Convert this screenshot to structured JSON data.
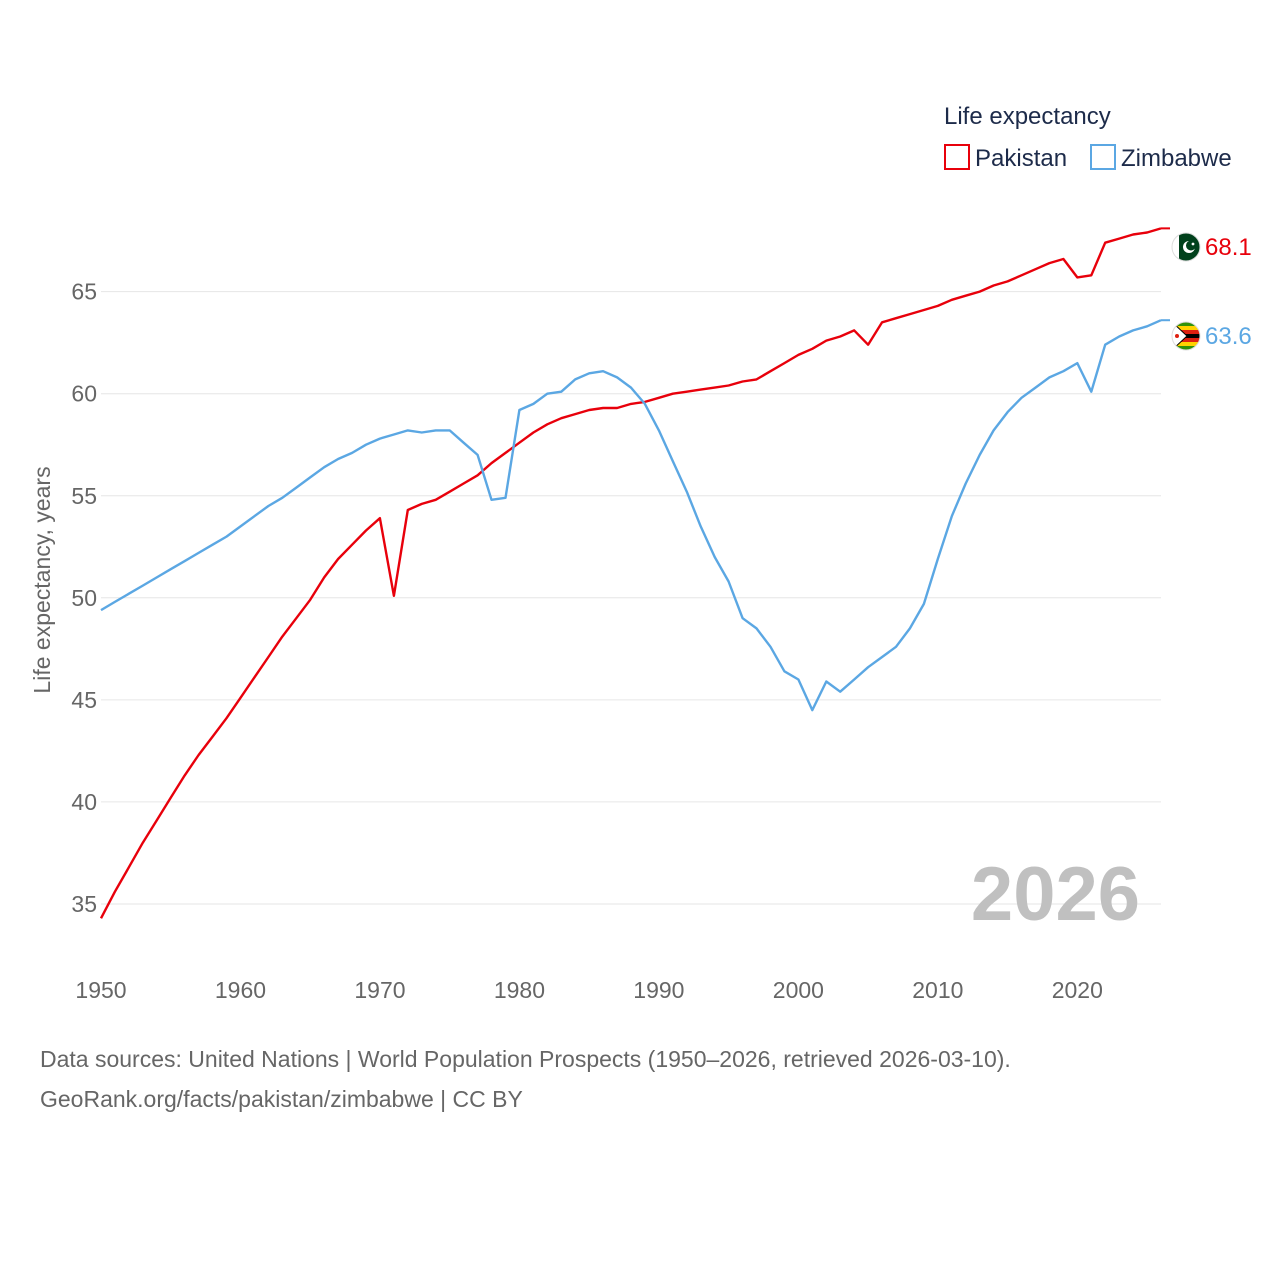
{
  "chart_data": {
    "type": "line",
    "legend_title": "Life expectancy",
    "ylabel": "Life expectancy, years",
    "xlabel": "",
    "xlim": [
      1950,
      2026
    ],
    "ylim": [
      32.5,
      69
    ],
    "x_ticks": [
      1950,
      1960,
      1970,
      1980,
      1990,
      2000,
      2010,
      2020
    ],
    "y_ticks": [
      35,
      40,
      45,
      50,
      55,
      60,
      65
    ],
    "grid": true,
    "legend_position": "top-right",
    "current_year": "2026",
    "x": [
      1950,
      1951,
      1952,
      1953,
      1954,
      1955,
      1956,
      1957,
      1958,
      1959,
      1960,
      1961,
      1962,
      1963,
      1964,
      1965,
      1966,
      1967,
      1968,
      1969,
      1970,
      1971,
      1972,
      1973,
      1974,
      1975,
      1976,
      1977,
      1978,
      1979,
      1980,
      1981,
      1982,
      1983,
      1984,
      1985,
      1986,
      1987,
      1988,
      1989,
      1990,
      1991,
      1992,
      1993,
      1994,
      1995,
      1996,
      1997,
      1998,
      1999,
      2000,
      2001,
      2002,
      2003,
      2004,
      2005,
      2006,
      2007,
      2008,
      2009,
      2010,
      2011,
      2012,
      2013,
      2014,
      2015,
      2016,
      2017,
      2018,
      2019,
      2020,
      2021,
      2022,
      2023,
      2024,
      2025,
      2026
    ],
    "series": [
      {
        "name": "Pakistan",
        "color": "#e8000b",
        "end_label": "68.1",
        "flag": "pakistan-flag",
        "values": [
          34.3,
          35.6,
          36.8,
          38.0,
          39.1,
          40.2,
          41.3,
          42.3,
          43.2,
          44.1,
          45.1,
          46.1,
          47.1,
          48.1,
          49.0,
          49.9,
          51.0,
          51.9,
          52.6,
          53.3,
          53.9,
          50.1,
          54.3,
          54.6,
          54.8,
          55.2,
          55.6,
          56.0,
          56.6,
          57.1,
          57.6,
          58.1,
          58.5,
          58.8,
          59.0,
          59.2,
          59.3,
          59.3,
          59.5,
          59.6,
          59.8,
          60.0,
          60.1,
          60.2,
          60.3,
          60.4,
          60.6,
          60.7,
          61.1,
          61.5,
          61.9,
          62.2,
          62.6,
          62.8,
          63.1,
          62.4,
          63.5,
          63.7,
          63.9,
          64.1,
          64.3,
          64.6,
          64.8,
          65.0,
          65.3,
          65.5,
          65.8,
          66.1,
          66.4,
          66.6,
          65.7,
          65.8,
          67.4,
          67.6,
          67.8,
          67.9,
          68.1
        ]
      },
      {
        "name": "Zimbabwe",
        "color": "#5ba7e3",
        "end_label": "63.6",
        "flag": "zimbabwe-flag",
        "values": [
          49.4,
          49.8,
          50.2,
          50.6,
          51.0,
          51.4,
          51.8,
          52.2,
          52.6,
          53.0,
          53.5,
          54.0,
          54.5,
          54.9,
          55.4,
          55.9,
          56.4,
          56.8,
          57.1,
          57.5,
          57.8,
          58.0,
          58.2,
          58.1,
          58.2,
          58.2,
          57.6,
          57.0,
          54.8,
          54.9,
          59.2,
          59.5,
          60.0,
          60.1,
          60.7,
          61.0,
          61.1,
          60.8,
          60.3,
          59.5,
          58.2,
          56.7,
          55.2,
          53.5,
          52.0,
          50.8,
          49.0,
          48.5,
          47.6,
          46.4,
          46.0,
          44.5,
          45.9,
          45.4,
          46.0,
          46.6,
          47.1,
          47.6,
          48.5,
          49.7,
          51.9,
          54.0,
          55.6,
          57.0,
          58.2,
          59.1,
          59.8,
          60.3,
          60.8,
          61.1,
          61.5,
          60.1,
          62.4,
          62.8,
          63.1,
          63.3,
          63.6
        ]
      }
    ]
  },
  "footer": {
    "source_line": "Data sources: United Nations | World Population Prospects (1950–2026, retrieved 2026-03-10).",
    "url_line": "GeoRank.org/facts/pakistan/zimbabwe | CC BY"
  }
}
